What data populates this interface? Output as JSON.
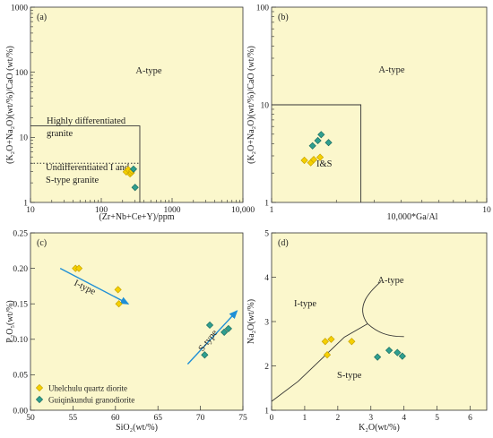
{
  "colors": {
    "panel_bg": "#fbf7cc",
    "axis": "#333333",
    "uhel_fill": "#f5d000",
    "uhel_stroke": "#c8a400",
    "guiq_fill": "#2f9f8f",
    "guiq_stroke": "#1d6e62",
    "arrow": "#1f8fd6"
  },
  "chart_data": [
    {
      "panel": "(a)",
      "type": "scatter",
      "xscale": "log",
      "yscale": "log",
      "xlim": [
        10,
        10000
      ],
      "ylim": [
        1,
        1000
      ],
      "xticks": [
        "10",
        "100",
        "1000",
        "10,000"
      ],
      "yticks": [
        "1",
        "10",
        "100",
        "1000"
      ],
      "xlabel": "(Zr+Nb+Ce+Y)/ppm",
      "ylabel": "(K₂O+Na₂O)(wt/%)/CaO (wt/%)",
      "labels": {
        "atype": "A-type",
        "hd1": "Highly differentiated",
        "hd2": "granite",
        "ui1": "Undifferentiated I and",
        "ui2": "S-type granite"
      },
      "series": [
        {
          "name": "Uhelchulu quartz diorite",
          "points": [
            [
              225,
              2.95
            ],
            [
              240,
              3.2
            ],
            [
              255,
              2.75
            ],
            [
              265,
              2.85
            ],
            [
              270,
              3.05
            ]
          ]
        },
        {
          "name": "Guiqinkundui granodiorite",
          "points": [
            [
              285,
              3.25
            ],
            [
              300,
              1.7
            ]
          ]
        }
      ]
    },
    {
      "panel": "(b)",
      "type": "scatter",
      "xscale": "log",
      "yscale": "log",
      "xlim": [
        1,
        10
      ],
      "ylim": [
        1,
        100
      ],
      "xticks": [
        "1",
        "10"
      ],
      "yticks": [
        "1",
        "10",
        "100"
      ],
      "xlabel": "10,000*Ga/Al",
      "ylabel": "(K₂O+Na₂O)(wt/%)/CaO (wt/%)",
      "labels": {
        "atype": "A-type",
        "is": "I&S"
      },
      "series": [
        {
          "name": "Uhelchulu quartz diorite",
          "points": [
            [
              1.42,
              2.7
            ],
            [
              1.52,
              2.55
            ],
            [
              1.57,
              2.75
            ],
            [
              1.68,
              2.9
            ]
          ]
        },
        {
          "name": "Guiqinkundui granodiorite",
          "points": [
            [
              1.55,
              3.8
            ],
            [
              1.64,
              4.3
            ],
            [
              1.7,
              4.95
            ],
            [
              1.84,
              4.1
            ]
          ]
        }
      ]
    },
    {
      "panel": "(c)",
      "type": "scatter",
      "xlim": [
        50,
        75
      ],
      "ylim": [
        0,
        0.25
      ],
      "xticks": [
        "50",
        "55",
        "60",
        "65",
        "70",
        "75"
      ],
      "yticks": [
        "0.00",
        "0.05",
        "0.10",
        "0.15",
        "0.20",
        "0.25"
      ],
      "xlabel": "SiO₂(wt/%)",
      "ylabel": "P₂O₅(wt/%)",
      "labels": {
        "itype": "I-type",
        "stype": "S-type"
      },
      "series": [
        {
          "name": "Uhelchulu quartz diorite",
          "points": [
            [
              55.3,
              0.2
            ],
            [
              55.7,
              0.2
            ],
            [
              60.3,
              0.17
            ],
            [
              60.4,
              0.15
            ]
          ]
        },
        {
          "name": "Guiqinkundui granodiorite",
          "points": [
            [
              70.5,
              0.078
            ],
            [
              71.1,
              0.12
            ],
            [
              72.8,
              0.11
            ],
            [
              73.3,
              0.115
            ]
          ]
        }
      ],
      "legend": [
        "Uhelchulu quartz diorite",
        "Guiqinkundui granodiorite"
      ]
    },
    {
      "panel": "(d)",
      "type": "scatter",
      "xlim": [
        0,
        6.5
      ],
      "ylim": [
        1,
        5
      ],
      "xticks": [
        "0",
        "1",
        "2",
        "3",
        "4",
        "5",
        "6"
      ],
      "yticks": [
        "1",
        "2",
        "3",
        "4",
        "5"
      ],
      "xlabel": "K₂O(wt/%)",
      "ylabel": "Na₂O(wt/%)",
      "labels": {
        "atype": "A-type",
        "itype": "I-type",
        "stype": "S-type"
      },
      "series": [
        {
          "name": "Uhelchulu quartz diorite",
          "points": [
            [
              1.62,
              2.55
            ],
            [
              1.68,
              2.25
            ],
            [
              1.8,
              2.6
            ],
            [
              2.42,
              2.55
            ]
          ]
        },
        {
          "name": "Guiqinkundui granodiorite",
          "points": [
            [
              3.2,
              2.2
            ],
            [
              3.55,
              2.35
            ],
            [
              3.8,
              2.3
            ],
            [
              3.95,
              2.22
            ]
          ]
        }
      ]
    }
  ]
}
